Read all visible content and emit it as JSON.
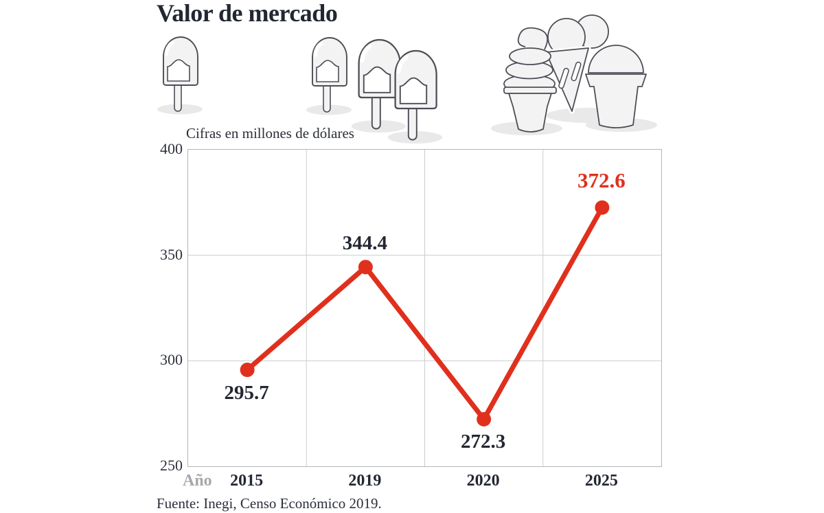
{
  "title": "Valor de mercado",
  "source": "Fuente: Inegi, Censo Económico 2019.",
  "illustrations": [
    "popsicle-icon",
    "popsicle-icon",
    "popsicle-pair-icon",
    "ice-cream-cones-icon"
  ],
  "colors": {
    "accent_red": "#e0301d",
    "ink": "#232732",
    "muted_gray": "#a6a8ab",
    "grid_line": "#cbcdce",
    "plot_border": "#b3b6b8",
    "illustration_fill": "#f3f3f4",
    "illustration_outline": "#4d4d55",
    "shadow": "#e9e9ea"
  },
  "chart_data": {
    "type": "line",
    "title": "Valor de mercado",
    "subtitle": "Cifras en millones de dólares",
    "x_axis_title": "Año",
    "categories": [
      "2015",
      "2019",
      "2020",
      "2025"
    ],
    "values": [
      295.7,
      344.4,
      272.3,
      372.6
    ],
    "ylim": [
      250,
      400
    ],
    "yticks": [
      400,
      350,
      300,
      250
    ],
    "grid": true,
    "legend": false,
    "line_color": "#e0301d",
    "point_color": "#e0301d",
    "label_color": "#232732",
    "emphasis_index": 3,
    "emphasis_color": "#e0301d"
  }
}
